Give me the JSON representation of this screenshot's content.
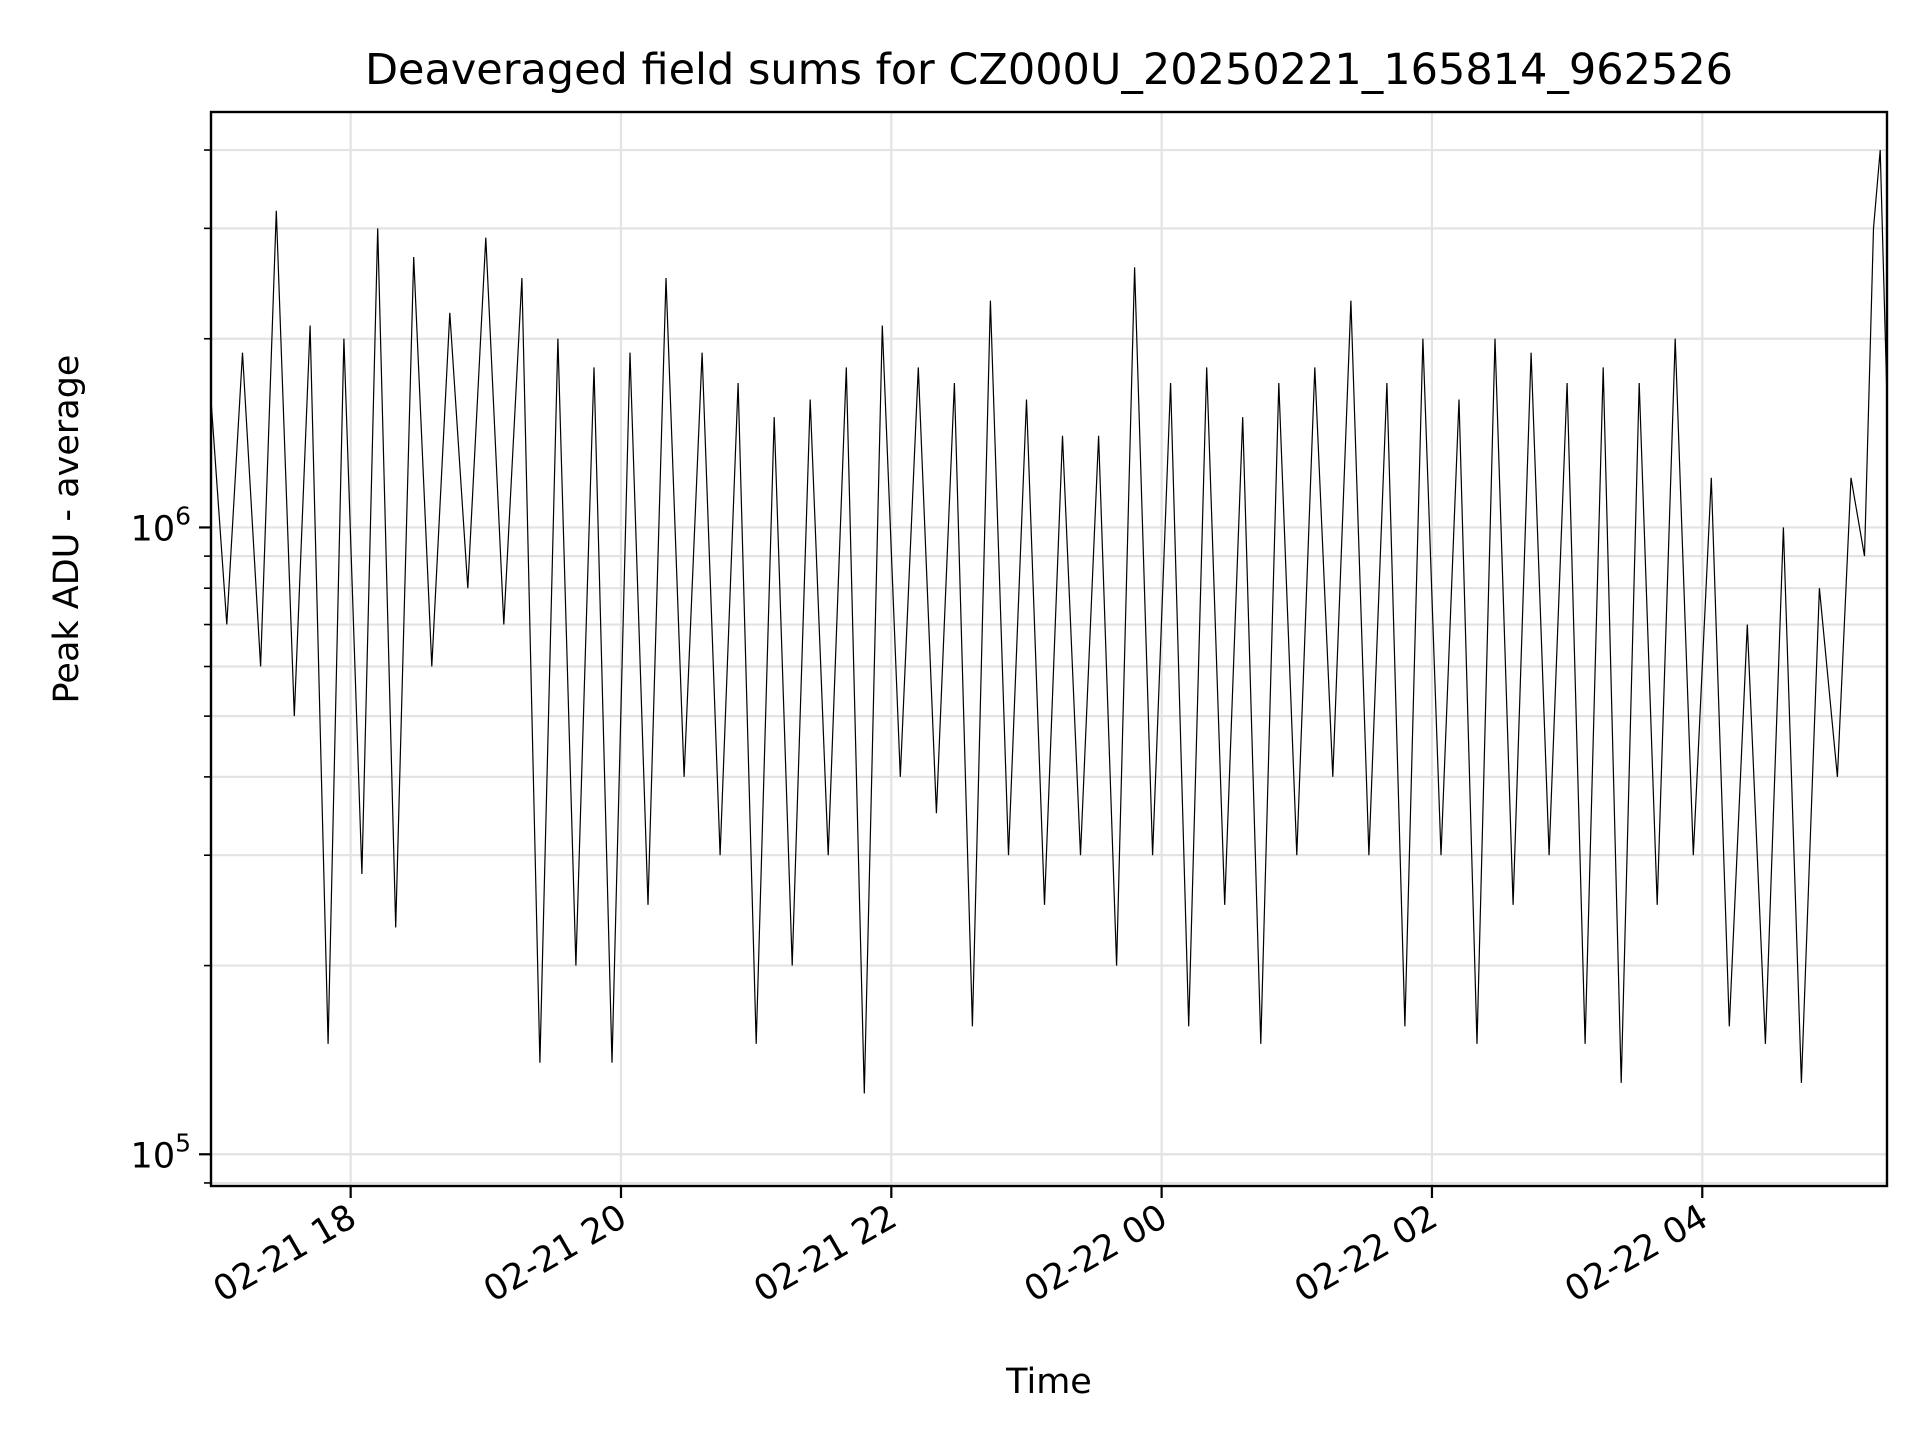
{
  "chart_data": {
    "type": "line",
    "title": "Deaveraged field sums for CZ000U_20250221_165814_962526",
    "xlabel": "Time",
    "ylabel": "Peak ADU - average",
    "x_axis": {
      "kind": "time",
      "range": [
        "2025-02-21 16:58",
        "2025-02-22 05:22"
      ],
      "ticks": [
        {
          "value": "2025-02-21 18:00",
          "label": "02-21 18"
        },
        {
          "value": "2025-02-21 20:00",
          "label": "02-21 20"
        },
        {
          "value": "2025-02-21 22:00",
          "label": "02-21 22"
        },
        {
          "value": "2025-02-22 00:00",
          "label": "02-22 00"
        },
        {
          "value": "2025-02-22 02:00",
          "label": "02-22 02"
        },
        {
          "value": "2025-02-22 04:00",
          "label": "02-22 04"
        }
      ]
    },
    "y_axis": {
      "scale": "log",
      "range": [
        89000,
        4600000
      ],
      "ticks": [
        {
          "value": 100000,
          "base": "10",
          "exp": "5"
        },
        {
          "value": 1000000,
          "base": "10",
          "exp": "6"
        }
      ]
    },
    "grid": true,
    "line_color": "#000000",
    "series": [
      {
        "points": [
          [
            "2025-02-21 16:58",
            1600000
          ],
          [
            "2025-02-21 17:05",
            700000
          ],
          [
            "2025-02-21 17:12",
            1900000
          ],
          [
            "2025-02-21 17:20",
            600000
          ],
          [
            "2025-02-21 17:27",
            3200000
          ],
          [
            "2025-02-21 17:35",
            500000
          ],
          [
            "2025-02-21 17:42",
            2100000
          ],
          [
            "2025-02-21 17:50",
            150000
          ],
          [
            "2025-02-21 17:57",
            2000000
          ],
          [
            "2025-02-21 18:05",
            280000
          ],
          [
            "2025-02-21 18:12",
            3000000
          ],
          [
            "2025-02-21 18:20",
            230000
          ],
          [
            "2025-02-21 18:28",
            2700000
          ],
          [
            "2025-02-21 18:36",
            600000
          ],
          [
            "2025-02-21 18:44",
            2200000
          ],
          [
            "2025-02-21 18:52",
            800000
          ],
          [
            "2025-02-21 19:00",
            2900000
          ],
          [
            "2025-02-21 19:08",
            700000
          ],
          [
            "2025-02-21 19:16",
            2500000
          ],
          [
            "2025-02-21 19:24",
            140000
          ],
          [
            "2025-02-21 19:32",
            2000000
          ],
          [
            "2025-02-21 19:40",
            200000
          ],
          [
            "2025-02-21 19:48",
            1800000
          ],
          [
            "2025-02-21 19:56",
            140000
          ],
          [
            "2025-02-21 20:04",
            1900000
          ],
          [
            "2025-02-21 20:12",
            250000
          ],
          [
            "2025-02-21 20:20",
            2500000
          ],
          [
            "2025-02-21 20:28",
            400000
          ],
          [
            "2025-02-21 20:36",
            1900000
          ],
          [
            "2025-02-21 20:44",
            300000
          ],
          [
            "2025-02-21 20:52",
            1700000
          ],
          [
            "2025-02-21 21:00",
            150000
          ],
          [
            "2025-02-21 21:08",
            1500000
          ],
          [
            "2025-02-21 21:16",
            200000
          ],
          [
            "2025-02-21 21:24",
            1600000
          ],
          [
            "2025-02-21 21:32",
            300000
          ],
          [
            "2025-02-21 21:40",
            1800000
          ],
          [
            "2025-02-21 21:48",
            125000
          ],
          [
            "2025-02-21 21:56",
            2100000
          ],
          [
            "2025-02-21 22:04",
            400000
          ],
          [
            "2025-02-21 22:12",
            1800000
          ],
          [
            "2025-02-21 22:20",
            350000
          ],
          [
            "2025-02-21 22:28",
            1700000
          ],
          [
            "2025-02-21 22:36",
            160000
          ],
          [
            "2025-02-21 22:44",
            2300000
          ],
          [
            "2025-02-21 22:52",
            300000
          ],
          [
            "2025-02-21 23:00",
            1600000
          ],
          [
            "2025-02-21 23:08",
            250000
          ],
          [
            "2025-02-21 23:16",
            1400000
          ],
          [
            "2025-02-21 23:24",
            300000
          ],
          [
            "2025-02-21 23:32",
            1400000
          ],
          [
            "2025-02-21 23:40",
            200000
          ],
          [
            "2025-02-21 23:48",
            2600000
          ],
          [
            "2025-02-21 23:56",
            300000
          ],
          [
            "2025-02-22 00:04",
            1700000
          ],
          [
            "2025-02-22 00:12",
            160000
          ],
          [
            "2025-02-22 00:20",
            1800000
          ],
          [
            "2025-02-22 00:28",
            250000
          ],
          [
            "2025-02-22 00:36",
            1500000
          ],
          [
            "2025-02-22 00:44",
            150000
          ],
          [
            "2025-02-22 00:52",
            1700000
          ],
          [
            "2025-02-22 01:00",
            300000
          ],
          [
            "2025-02-22 01:08",
            1800000
          ],
          [
            "2025-02-22 01:16",
            400000
          ],
          [
            "2025-02-22 01:24",
            2300000
          ],
          [
            "2025-02-22 01:32",
            300000
          ],
          [
            "2025-02-22 01:40",
            1700000
          ],
          [
            "2025-02-22 01:48",
            160000
          ],
          [
            "2025-02-22 01:56",
            2000000
          ],
          [
            "2025-02-22 02:04",
            300000
          ],
          [
            "2025-02-22 02:12",
            1600000
          ],
          [
            "2025-02-22 02:20",
            150000
          ],
          [
            "2025-02-22 02:28",
            2000000
          ],
          [
            "2025-02-22 02:36",
            250000
          ],
          [
            "2025-02-22 02:44",
            1900000
          ],
          [
            "2025-02-22 02:52",
            300000
          ],
          [
            "2025-02-22 03:00",
            1700000
          ],
          [
            "2025-02-22 03:08",
            150000
          ],
          [
            "2025-02-22 03:16",
            1800000
          ],
          [
            "2025-02-22 03:24",
            130000
          ],
          [
            "2025-02-22 03:32",
            1700000
          ],
          [
            "2025-02-22 03:40",
            250000
          ],
          [
            "2025-02-22 03:48",
            2000000
          ],
          [
            "2025-02-22 03:56",
            300000
          ],
          [
            "2025-02-22 04:04",
            1200000
          ],
          [
            "2025-02-22 04:12",
            160000
          ],
          [
            "2025-02-22 04:20",
            700000
          ],
          [
            "2025-02-22 04:28",
            150000
          ],
          [
            "2025-02-22 04:36",
            1000000
          ],
          [
            "2025-02-22 04:44",
            130000
          ],
          [
            "2025-02-22 04:52",
            800000
          ],
          [
            "2025-02-22 05:00",
            400000
          ],
          [
            "2025-02-22 05:06",
            1200000
          ],
          [
            "2025-02-22 05:12",
            900000
          ],
          [
            "2025-02-22 05:16",
            3000000
          ],
          [
            "2025-02-22 05:19",
            4000000
          ],
          [
            "2025-02-22 05:22",
            1600000
          ]
        ]
      }
    ]
  }
}
